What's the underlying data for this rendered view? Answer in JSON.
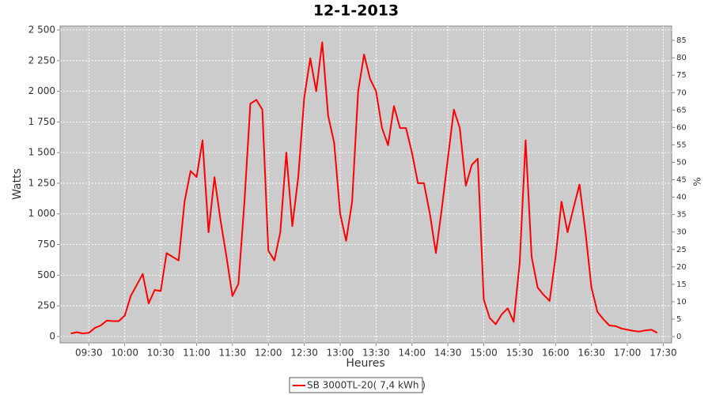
{
  "chart_data": {
    "type": "line",
    "title": "12-1-2013",
    "x_label": "Heures",
    "y_label": "Watts",
    "y2_label": "%",
    "x": [
      "09:15",
      "09:20",
      "09:25",
      "09:30",
      "09:35",
      "09:40",
      "09:45",
      "09:50",
      "09:55",
      "10:00",
      "10:05",
      "10:10",
      "10:15",
      "10:20",
      "10:25",
      "10:30",
      "10:35",
      "10:40",
      "10:45",
      "10:50",
      "10:55",
      "11:00",
      "11:05",
      "11:10",
      "11:15",
      "11:20",
      "11:25",
      "11:30",
      "11:35",
      "11:40",
      "11:45",
      "11:50",
      "11:55",
      "12:00",
      "12:05",
      "12:10",
      "12:15",
      "12:20",
      "12:25",
      "12:30",
      "12:35",
      "12:40",
      "12:45",
      "12:50",
      "12:55",
      "13:00",
      "13:05",
      "13:10",
      "13:15",
      "13:20",
      "13:25",
      "13:30",
      "13:35",
      "13:40",
      "13:45",
      "13:50",
      "13:55",
      "14:00",
      "14:05",
      "14:10",
      "14:15",
      "14:20",
      "14:25",
      "14:30",
      "14:35",
      "14:40",
      "14:45",
      "14:50",
      "14:55",
      "15:00",
      "15:05",
      "15:10",
      "15:15",
      "15:20",
      "15:25",
      "15:30",
      "15:35",
      "15:40",
      "15:45",
      "15:50",
      "15:55",
      "16:00",
      "16:05",
      "16:10",
      "16:15",
      "16:20",
      "16:25",
      "16:30",
      "16:35",
      "16:40",
      "16:45",
      "16:50",
      "16:55",
      "17:00",
      "17:05",
      "17:10",
      "17:15",
      "17:20",
      "17:25"
    ],
    "series": [
      {
        "name": "SB 3000TL-20( 7,4 kWh )",
        "color": "#ff0000",
        "values": [
          25,
          35,
          25,
          30,
          70,
          90,
          130,
          125,
          125,
          170,
          330,
          420,
          510,
          270,
          380,
          370,
          680,
          650,
          620,
          1100,
          1350,
          1300,
          1600,
          850,
          1300,
          950,
          650,
          330,
          430,
          1100,
          1900,
          1930,
          1850,
          700,
          620,
          850,
          1500,
          900,
          1300,
          1950,
          2270,
          2000,
          2400,
          1800,
          1580,
          1000,
          780,
          1100,
          2000,
          2300,
          2100,
          2000,
          1700,
          1560,
          1880,
          1700,
          1700,
          1500,
          1250,
          1250,
          1000,
          680,
          1050,
          1450,
          1850,
          1700,
          1230,
          1400,
          1450,
          300,
          150,
          100,
          180,
          230,
          120,
          600,
          1600,
          650,
          400,
          340,
          290,
          650,
          1100,
          850,
          1050,
          1240,
          850,
          400,
          200,
          140,
          90,
          85,
          65,
          55,
          45,
          40,
          50,
          55,
          30
        ]
      }
    ],
    "xlim": [
      "09:06",
      "17:37"
    ],
    "xticks": [
      "09:30",
      "10:00",
      "10:30",
      "11:00",
      "11:30",
      "12:00",
      "12:30",
      "13:00",
      "13:30",
      "14:00",
      "14:30",
      "15:00",
      "15:30",
      "16:00",
      "16:30",
      "17:00",
      "17:30"
    ],
    "ylim": [
      -52,
      2532
    ],
    "yticks": [
      0,
      250,
      500,
      750,
      {
        "value": 1000,
        "label": "1 000"
      },
      {
        "value": 1250,
        "label": "1 250"
      },
      {
        "value": 1500,
        "label": "1 500"
      },
      {
        "value": 1750,
        "label": "1 750"
      },
      {
        "value": 2000,
        "label": "2 000"
      },
      {
        "value": 2250,
        "label": "2 250"
      },
      {
        "value": 2500,
        "label": "2 500"
      }
    ],
    "y2lim": [
      -1.8,
      89.1
    ],
    "y2ticks": [
      0,
      5,
      10,
      15,
      20,
      25,
      30,
      35,
      40,
      45,
      50,
      55,
      60,
      65,
      70,
      75,
      80,
      85
    ],
    "grid": true,
    "legend": "bottom"
  }
}
